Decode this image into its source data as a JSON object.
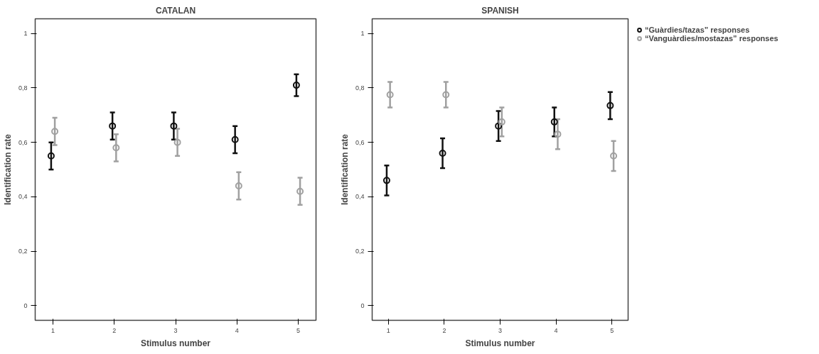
{
  "chart_data": [
    {
      "type": "scatter",
      "title": "CATALAN",
      "xlabel": "Stimulus number",
      "ylabel": "Identification rate",
      "xlim": [
        0.71,
        5.29
      ],
      "xticks": [
        1,
        2,
        3,
        4,
        5
      ],
      "ylim": [
        -0.054,
        1.054
      ],
      "yticks": [
        0,
        {
          "value": 0.2,
          "label": "0,2"
        },
        {
          "value": 0.4,
          "label": "0,4"
        },
        {
          "value": 0.6,
          "label": "0,6"
        },
        {
          "value": 0.8,
          "label": "0,8"
        },
        1
      ],
      "marker": "circle",
      "grid": false,
      "legend": false,
      "series": [
        {
          "color": "#111111",
          "x": [
            0.97,
            1.97,
            2.97,
            3.97,
            4.97
          ],
          "values": [
            0.55,
            0.66,
            0.66,
            0.61,
            0.81
          ],
          "errors": [
            0.05,
            0.05,
            0.05,
            0.05,
            0.04
          ]
        },
        {
          "color": "#a0a0a0",
          "x": [
            1.03,
            2.03,
            3.03,
            4.03,
            5.03
          ],
          "values": [
            0.64,
            0.58,
            0.6,
            0.44,
            0.42
          ],
          "errors": [
            0.05,
            0.05,
            0.05,
            0.05,
            0.05
          ]
        }
      ]
    },
    {
      "type": "scatter",
      "title": "SPANISH",
      "xlabel": "Stimulus number",
      "ylabel": "Identification rate",
      "xlim": [
        0.71,
        5.29
      ],
      "xticks": [
        1,
        2,
        3,
        4,
        5
      ],
      "ylim": [
        -0.054,
        1.054
      ],
      "yticks": [
        0,
        {
          "value": 0.2,
          "label": "0,2"
        },
        {
          "value": 0.4,
          "label": "0,4"
        },
        {
          "value": 0.6,
          "label": "0,6"
        },
        {
          "value": 0.8,
          "label": "0,8"
        },
        1
      ],
      "marker": "circle",
      "grid": false,
      "legend": "right",
      "series": [
        {
          "name": "“Guàrdies/tazas” responses",
          "color": "#111111",
          "x": [
            0.97,
            1.97,
            2.97,
            3.97,
            4.97
          ],
          "values": [
            0.46,
            0.56,
            0.66,
            0.675,
            0.735
          ],
          "errors": [
            0.055,
            0.055,
            0.055,
            0.053,
            0.05
          ]
        },
        {
          "name": "“Vanguàrdies/mostazas” responses",
          "color": "#a0a0a0",
          "x": [
            1.03,
            2.03,
            3.03,
            4.03,
            5.03
          ],
          "values": [
            0.775,
            0.775,
            0.675,
            0.63,
            0.55
          ],
          "errors": [
            0.047,
            0.047,
            0.053,
            0.055,
            0.055
          ]
        }
      ]
    }
  ]
}
